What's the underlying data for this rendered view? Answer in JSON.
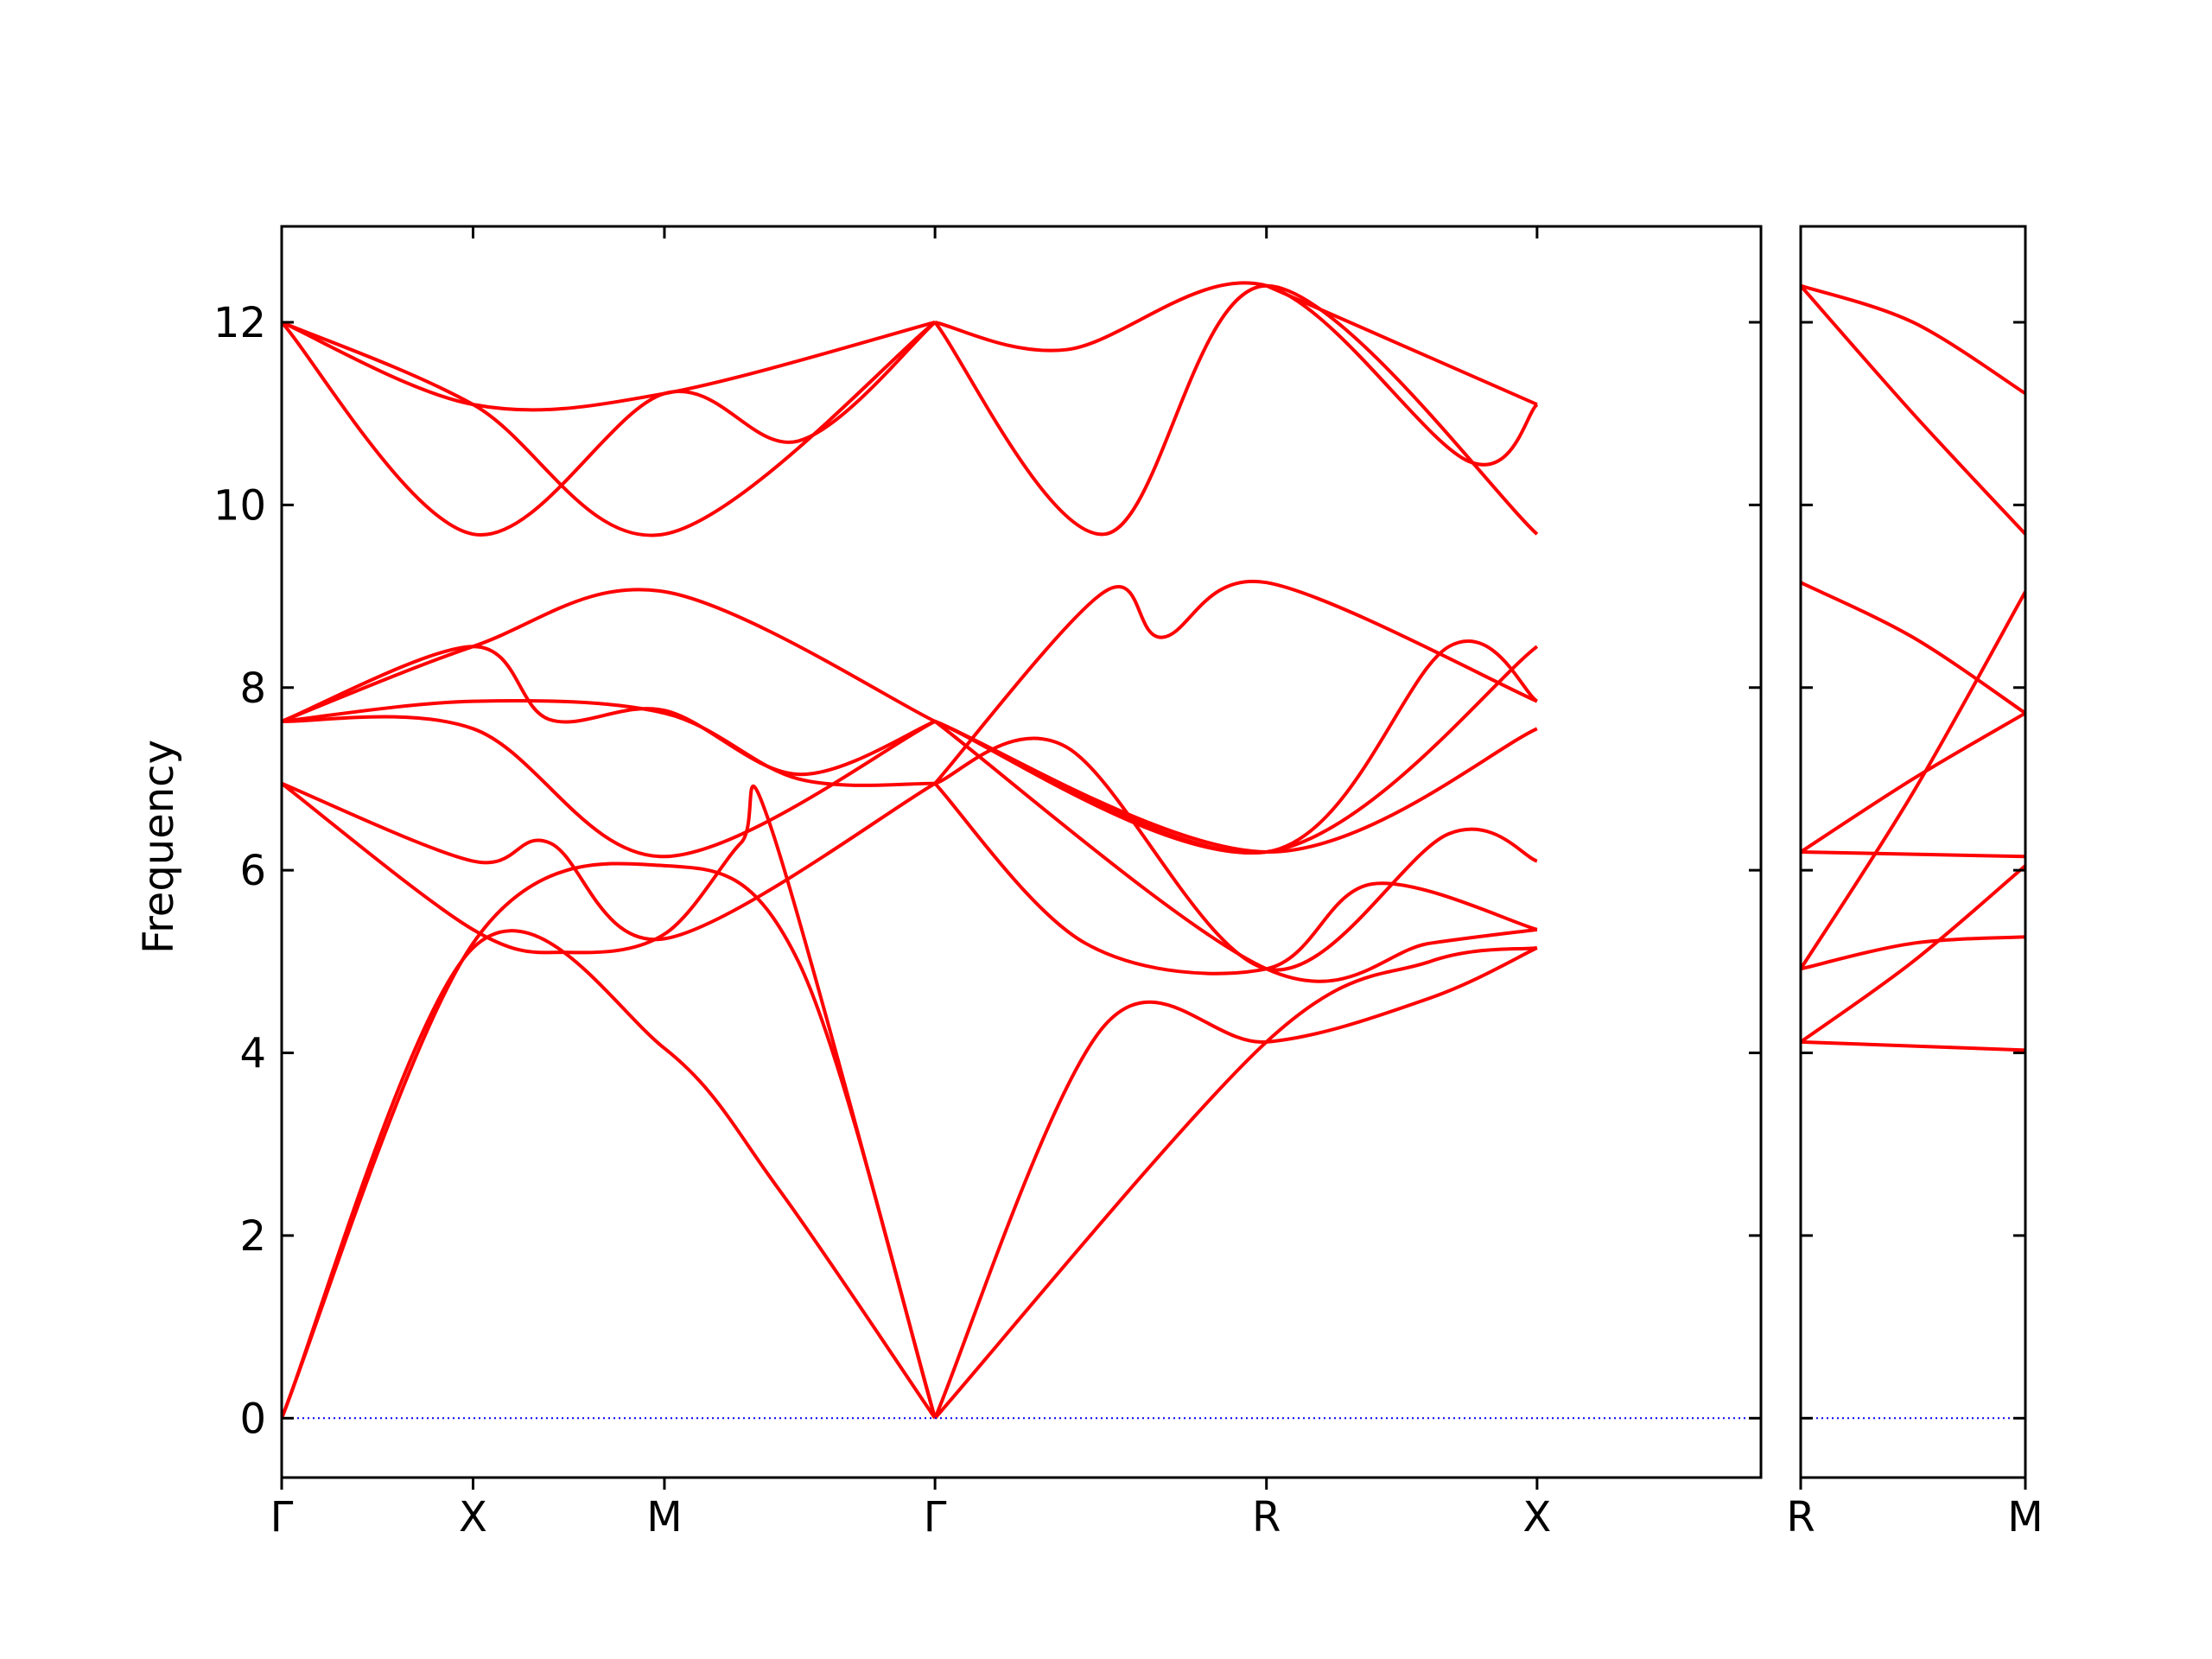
{
  "chart_data": {
    "type": "line",
    "ylabel": "Frequency",
    "ylim": [
      -0.65,
      13.05
    ],
    "yticks": [
      0,
      2,
      4,
      6,
      8,
      10,
      12
    ],
    "band_color": "#ff0000",
    "zero_line_color": "#0000ff",
    "panels": [
      {
        "path_labels": [
          "Γ",
          "X",
          "M",
          "Γ",
          "R",
          "X"
        ],
        "xlim": [
          0,
          3.865
        ],
        "label_positions": [
          0,
          0.5,
          1.0,
          1.707,
          2.573,
          3.28
        ],
        "bands": [
          {
            "x": [
              0,
              0.5,
              1.0,
              1.3,
              1.707
            ],
            "y": [
              0,
              5.15,
              4.05,
              2.5,
              0
            ]
          },
          {
            "x": [
              0,
              0.5,
              1.0,
              1.35,
              1.707
            ],
            "y": [
              0,
              5.2,
              6.05,
              5.0,
              0
            ]
          },
          {
            "x": [
              0,
              0.5,
              0.75,
              1.0,
              1.2,
              1.28,
              1.707
            ],
            "y": [
              6.95,
              5.35,
              5.1,
              5.3,
              6.3,
              6.45,
              0
            ]
          },
          {
            "x": [
              0,
              0.5,
              0.7,
              1.0,
              1.707
            ],
            "y": [
              6.95,
              6.1,
              6.3,
              5.25,
              6.95
            ]
          },
          {
            "x": [
              0,
              0.5,
              1.0,
              1.707
            ],
            "y": [
              7.63,
              7.55,
              6.15,
              7.63
            ]
          },
          {
            "x": [
              0,
              0.5,
              1.0,
              1.35,
              1.707
            ],
            "y": [
              7.63,
              7.85,
              7.72,
              7.0,
              6.95
            ]
          },
          {
            "x": [
              0,
              0.5,
              0.7,
              1.0,
              1.35,
              1.707
            ],
            "y": [
              7.63,
              8.45,
              7.65,
              7.75,
              7.05,
              7.63
            ]
          },
          {
            "x": [
              0,
              0.5,
              1.0,
              1.707
            ],
            "y": [
              7.63,
              8.45,
              9.05,
              7.63
            ]
          },
          {
            "x": [
              0,
              0.5,
              1.0,
              1.35,
              1.707
            ],
            "y": [
              12.0,
              9.68,
              11.22,
              10.7,
              12.0
            ]
          },
          {
            "x": [
              0,
              0.5,
              1.0,
              1.707
            ],
            "y": [
              12.0,
              11.1,
              9.68,
              12.0
            ]
          },
          {
            "x": [
              0,
              0.5,
              1.0,
              1.707
            ],
            "y": [
              12.0,
              11.1,
              11.22,
              12.0
            ]
          },
          {
            "x": [
              1.707,
              2.15,
              2.573,
              3.0,
              3.28
            ],
            "y": [
              0,
              4.3,
              4.12,
              4.6,
              5.15
            ]
          },
          {
            "x": [
              1.707,
              2.573,
              3.0,
              3.28
            ],
            "y": [
              0,
              4.12,
              5.0,
              5.15
            ]
          },
          {
            "x": [
              1.707,
              2.1,
              2.573,
              2.85,
              3.28
            ],
            "y": [
              6.95,
              5.2,
              4.92,
              5.85,
              5.35
            ]
          },
          {
            "x": [
              1.707,
              2.573,
              3.0,
              3.28
            ],
            "y": [
              7.63,
              4.92,
              5.2,
              5.35
            ]
          },
          {
            "x": [
              1.707,
              2.05,
              2.573,
              3.05,
              3.28
            ],
            "y": [
              6.95,
              7.35,
              4.92,
              6.4,
              6.1
            ]
          },
          {
            "x": [
              1.707,
              2.573,
              3.28
            ],
            "y": [
              7.63,
              6.2,
              7.55
            ]
          },
          {
            "x": [
              1.707,
              2.573,
              3.28
            ],
            "y": [
              7.63,
              6.2,
              8.45
            ]
          },
          {
            "x": [
              1.707,
              2.573,
              3.05,
              3.28
            ],
            "y": [
              7.63,
              6.2,
              8.45,
              7.85
            ]
          },
          {
            "x": [
              1.707,
              2.15,
              2.3,
              2.573,
              3.28
            ],
            "y": [
              6.95,
              9.05,
              8.55,
              9.15,
              7.85
            ]
          },
          {
            "x": [
              1.707,
              2.15,
              2.573,
              3.28
            ],
            "y": [
              12.0,
              9.68,
              12.4,
              9.68
            ]
          },
          {
            "x": [
              1.707,
              2.05,
              2.573,
              3.1,
              3.28
            ],
            "y": [
              12.0,
              11.7,
              12.4,
              10.48,
              11.1
            ]
          },
          {
            "x": [
              2.573,
              3.28
            ],
            "y": [
              12.4,
              11.1
            ]
          }
        ]
      },
      {
        "path_labels": [
          "R",
          "M"
        ],
        "xlim": [
          0,
          0.5
        ],
        "label_positions": [
          0,
          0.5
        ],
        "bands": [
          {
            "x": [
              0,
              0.5
            ],
            "y": [
              4.12,
              4.03
            ]
          },
          {
            "x": [
              0,
              0.25,
              0.5
            ],
            "y": [
              4.12,
              5.0,
              6.05
            ]
          },
          {
            "x": [
              0,
              0.25,
              0.5
            ],
            "y": [
              4.92,
              5.2,
              5.27
            ]
          },
          {
            "x": [
              0,
              0.5
            ],
            "y": [
              6.2,
              6.15
            ]
          },
          {
            "x": [
              0,
              0.25,
              0.5
            ],
            "y": [
              4.92,
              6.85,
              9.05
            ]
          },
          {
            "x": [
              0,
              0.25,
              0.5
            ],
            "y": [
              6.2,
              7.0,
              7.72
            ]
          },
          {
            "x": [
              0,
              0.25,
              0.5
            ],
            "y": [
              9.15,
              8.55,
              7.72
            ]
          },
          {
            "x": [
              0,
              0.25,
              0.5
            ],
            "y": [
              12.4,
              11.0,
              9.68
            ]
          },
          {
            "x": [
              0,
              0.25,
              0.5
            ],
            "y": [
              12.4,
              12.0,
              11.22
            ]
          }
        ]
      }
    ]
  }
}
